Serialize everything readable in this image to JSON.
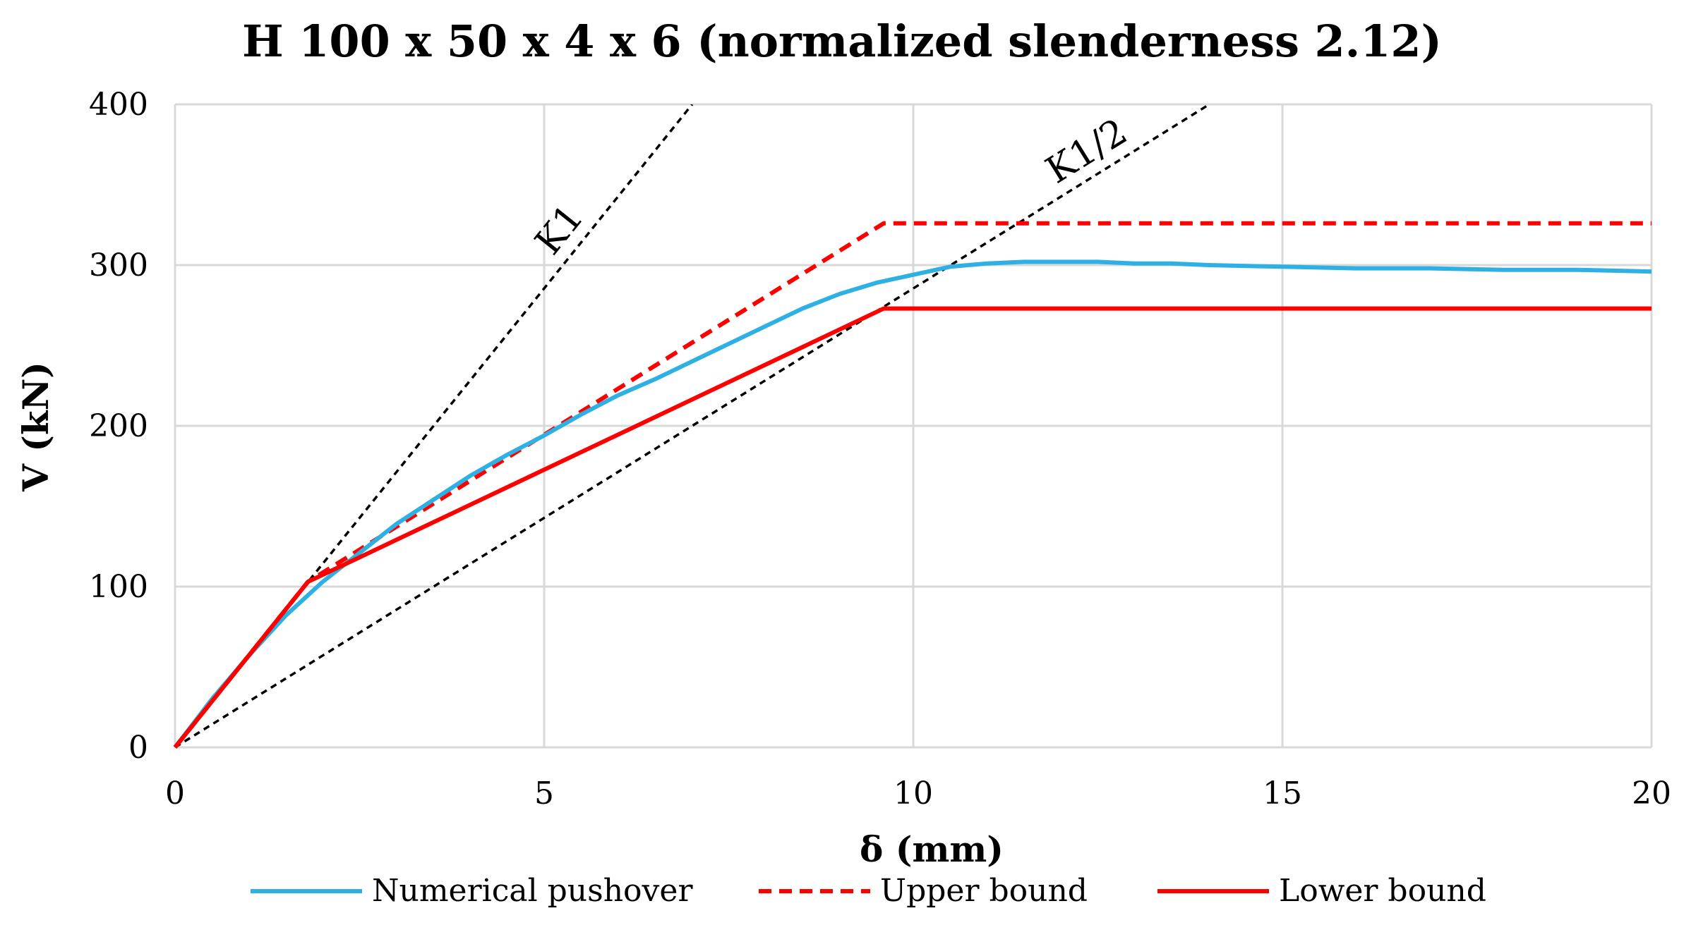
{
  "chart_data": {
    "type": "line",
    "title": "H 100 x 50 x 4 x 6 (normalized slenderness 2.12)",
    "xlabel": "δ (mm)",
    "ylabel": "V (kN)",
    "xlim": [
      0,
      20
    ],
    "ylim": [
      0,
      400
    ],
    "xticks": [
      0,
      5,
      10,
      15,
      20
    ],
    "yticks": [
      0,
      100,
      200,
      300,
      400
    ],
    "grid": true,
    "legend_position": "bottom",
    "series": [
      {
        "name": "Numerical pushover",
        "color": "#2eb0e4",
        "style": "solid",
        "x": [
          0,
          0.5,
          1.0,
          1.5,
          2.0,
          2.5,
          3.0,
          3.5,
          4.0,
          4.5,
          5.0,
          5.5,
          6.0,
          6.5,
          7.0,
          7.5,
          8.0,
          8.5,
          9.0,
          9.5,
          10.0,
          10.5,
          11.0,
          11.5,
          12.0,
          12.5,
          13.0,
          13.5,
          14.0,
          15.0,
          16.0,
          17.0,
          18.0,
          19.0,
          20.0
        ],
        "y": [
          0,
          30,
          57,
          82,
          103,
          121,
          139,
          154,
          169,
          182,
          194,
          207,
          219,
          229,
          240,
          251,
          262,
          273,
          282,
          289,
          294,
          299,
          301,
          302,
          302,
          302,
          301,
          301,
          300,
          299,
          298,
          298,
          297,
          297,
          296
        ]
      },
      {
        "name": "Upper bound",
        "color": "#ff0000",
        "style": "dashed",
        "x": [
          0,
          1.8,
          9.6,
          20
        ],
        "y": [
          0,
          103,
          326,
          326
        ]
      },
      {
        "name": "Lower bound",
        "color": "#ff0000",
        "style": "solid",
        "x": [
          0,
          1.8,
          9.6,
          20
        ],
        "y": [
          0,
          103,
          273,
          273
        ]
      }
    ],
    "reference_lines": [
      {
        "name": "K1",
        "label": "K1",
        "color": "#000000",
        "style": "dashed",
        "slope": 57.1
      },
      {
        "name": "K1/2",
        "label": "K1/2",
        "color": "#000000",
        "style": "dashed",
        "slope": 28.55
      }
    ]
  }
}
